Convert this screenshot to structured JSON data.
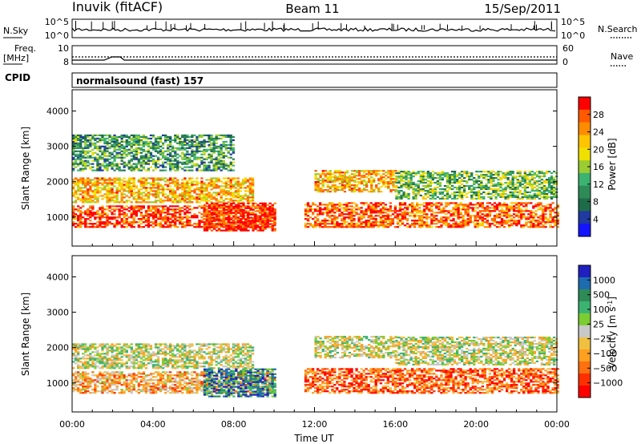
{
  "header": {
    "station": "Inuvik (fitACF)",
    "beam": "Beam 11",
    "date": "15/Sep/2011"
  },
  "strip_panels": {
    "nsky_label": "N.Sky",
    "nsearch_label": "N.Search",
    "left_ticks_top": [
      "10^5",
      "10^0"
    ],
    "right_ticks_top": [
      "10^5",
      "10^0"
    ],
    "freq_label": "Freq.",
    "freq_unit": "[MHz]",
    "nave_label": "Nave",
    "left_ticks_freq": [
      "10",
      "8"
    ],
    "right_ticks_freq": [
      "60",
      "0"
    ],
    "cpid_label": "CPID",
    "cpid_text": "normalsound (fast) 157"
  },
  "chart_data": [
    {
      "type": "heatmap",
      "title": "",
      "ylabel": "Slant Range [km]",
      "xlabel": "",
      "ylim": [
        180,
        4600
      ],
      "xlim": [
        0,
        24
      ],
      "yticks": [
        "1000",
        "2000",
        "3000",
        "4000"
      ],
      "colorbar_label": "Power [dB]",
      "colorbar_ticks": [
        "28",
        "24",
        "20",
        "16",
        "12",
        "8",
        "4"
      ],
      "colorbar_colors": [
        "#ff0000",
        "#ff5a00",
        "#ff8c00",
        "#ffc400",
        "#f0e000",
        "#9acd32",
        "#3cb371",
        "#2e8b57",
        "#1e6b4a",
        "#1f3aa0",
        "#1414ff"
      ],
      "echo_bands": [
        {
          "t": [
            0,
            10
          ],
          "r": [
            700,
            1300
          ],
          "level": 0.9
        },
        {
          "t": [
            0,
            9
          ],
          "r": [
            1400,
            2100
          ],
          "level": 0.7
        },
        {
          "t": [
            0,
            8
          ],
          "r": [
            2300,
            3300
          ],
          "level": 0.35
        },
        {
          "t": [
            11.5,
            24
          ],
          "r": [
            700,
            1400
          ],
          "level": 0.85
        },
        {
          "t": [
            12,
            16
          ],
          "r": [
            1700,
            2300
          ],
          "level": 0.7
        },
        {
          "t": [
            16,
            24
          ],
          "r": [
            1500,
            2300
          ],
          "level": 0.45
        },
        {
          "t": [
            6.5,
            10
          ],
          "r": [
            600,
            1400
          ],
          "level": 0.95
        }
      ]
    },
    {
      "type": "heatmap",
      "title": "",
      "ylabel": "Slant Range [km]",
      "xlabel": "Time UT",
      "ylim": [
        180,
        4600
      ],
      "xlim": [
        0,
        24
      ],
      "yticks": [
        "1000",
        "2000",
        "3000",
        "4000"
      ],
      "xticks": [
        "00:00",
        "04:00",
        "08:00",
        "12:00",
        "16:00",
        "20:00",
        "00:00"
      ],
      "colorbar_label": "Velocity [m s",
      "colorbar_label_sup": "-1",
      "colorbar_label_end": "]",
      "colorbar_ticks": [
        "1000",
        "500",
        "100",
        "25",
        "−25",
        "−100",
        "−500",
        "−1000"
      ],
      "colorbar_colors": [
        "#2020c0",
        "#1e6cb0",
        "#2e8b57",
        "#3cb371",
        "#7ccd32",
        "#c8c8c8",
        "#f0c040",
        "#ffa020",
        "#ff7010",
        "#ff3000",
        "#ff0000"
      ],
      "echo_bands": [
        {
          "t": [
            0,
            10
          ],
          "r": [
            700,
            1300
          ],
          "level": 0.35
        },
        {
          "t": [
            0,
            9
          ],
          "r": [
            1400,
            2100
          ],
          "level": 0.5
        },
        {
          "t": [
            11.5,
            24
          ],
          "r": [
            700,
            1400
          ],
          "level": 0.2
        },
        {
          "t": [
            12,
            16
          ],
          "r": [
            1700,
            2300
          ],
          "level": 0.5
        },
        {
          "t": [
            16,
            24
          ],
          "r": [
            1500,
            2300
          ],
          "level": 0.5
        },
        {
          "t": [
            6.5,
            10
          ],
          "r": [
            600,
            1400
          ],
          "level": 0.8
        }
      ]
    }
  ]
}
